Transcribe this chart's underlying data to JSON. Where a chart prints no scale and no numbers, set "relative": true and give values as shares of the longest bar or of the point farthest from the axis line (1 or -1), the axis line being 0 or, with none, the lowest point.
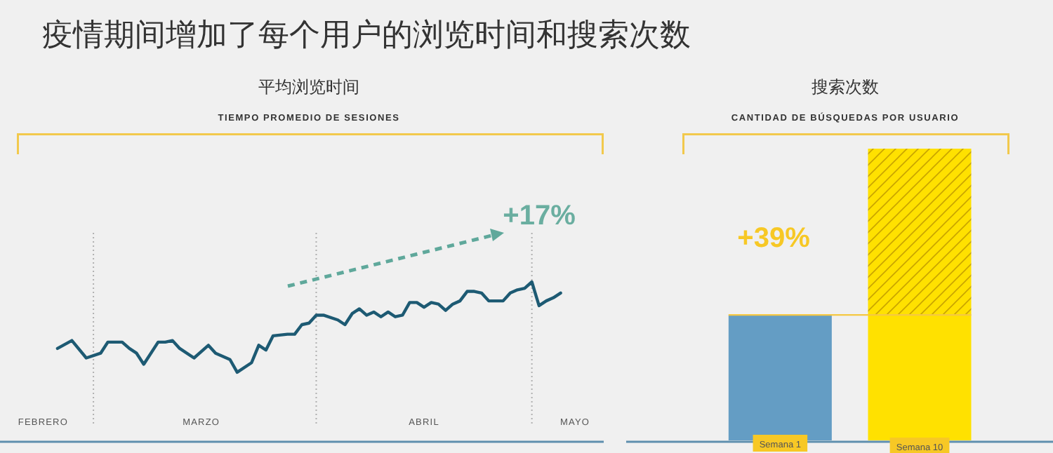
{
  "chart_data": [
    {
      "type": "line",
      "title": "平均浏览时间",
      "subtitle": "TIEMPO PROMEDIO DE SESIONES",
      "annotations": [
        "疫情期间增加了每个用户的浏览时间和搜索次数",
        "+17%"
      ],
      "relative": true,
      "line_style": "solid",
      "marker": "none",
      "x": [
        "--02-25",
        "--02-27",
        "--02-29",
        "--03-02",
        "--03-03",
        "--03-05",
        "--03-06",
        "--03-07",
        "--03-08",
        "--03-10",
        "--03-11",
        "--03-12",
        "--03-13",
        "--03-15",
        "--03-17",
        "--03-18",
        "--03-20",
        "--03-21",
        "--03-23",
        "--03-24",
        "--03-25",
        "--03-26",
        "--03-28",
        "--03-29",
        "--03-30",
        "--03-31",
        "--04-01",
        "--04-02",
        "--04-04",
        "--04-05",
        "--04-06",
        "--04-07",
        "--04-08",
        "--04-09",
        "--04-10",
        "--04-11",
        "--04-12",
        "--04-13",
        "--04-14",
        "--04-15",
        "--04-16",
        "--04-17",
        "--04-18",
        "--04-19",
        "--04-20",
        "--04-21",
        "--04-22",
        "--04-23",
        "--04-24",
        "--04-25",
        "--04-27",
        "--04-28",
        "--04-29",
        "--04-30",
        "--05-01",
        "--05-02",
        "--05-03",
        "--05-04",
        "--05-05"
      ],
      "series": [
        {
          "color": "#1d5a73",
          "values": [
            0.58,
            0.63,
            0.52,
            0.55,
            0.62,
            0.62,
            0.58,
            0.55,
            0.48,
            0.62,
            0.62,
            0.63,
            0.58,
            0.52,
            0.6,
            0.55,
            0.51,
            0.43,
            0.49,
            0.6,
            0.57,
            0.66,
            0.67,
            0.67,
            0.73,
            0.74,
            0.79,
            0.79,
            0.76,
            0.73,
            0.8,
            0.83,
            0.79,
            0.81,
            0.78,
            0.81,
            0.78,
            0.79,
            0.87,
            0.87,
            0.84,
            0.87,
            0.86,
            0.82,
            0.86,
            0.88,
            0.94,
            0.94,
            0.93,
            0.88,
            0.88,
            0.93,
            0.95,
            0.96,
            1,
            0.85,
            0.88,
            0.9,
            0.93
          ]
        }
      ],
      "xlim": [
        "--02-17",
        "--05-11"
      ],
      "xticks": [
        {
          "value": "--02-23",
          "label": "FEBRERO"
        },
        {
          "value": "--03-16",
          "label": "MARZO"
        },
        {
          "value": "--04-16",
          "label": "ABRIL"
        },
        {
          "value": "--05-07",
          "label": "MAYO"
        }
      ],
      "ref_lines": [
        {
          "axis": "x",
          "value": "--03-01",
          "color": "#b0b0b0",
          "line_style": "dotted"
        },
        {
          "axis": "x",
          "value": "--04-01",
          "color": "#b0b0b0",
          "line_style": "dotted"
        },
        {
          "axis": "x",
          "value": "--05-01",
          "color": "#b0b0b0",
          "line_style": "dotted"
        }
      ]
    },
    {
      "type": "bar",
      "title": "搜索次数",
      "subtitle": "CANTIDAD DE BÚSQUEDAS POR USUARIO",
      "annotations": [
        "+39%"
      ],
      "relative": true,
      "stacked": true,
      "categories": [
        "Semana 1",
        "Semana 10"
      ],
      "series": [
        {
          "colors": [
            "#649dc4",
            "#ffe100"
          ],
          "values": [
            0.43,
            0.43
          ]
        },
        {
          "color": "#ffe100",
          "values": [
            null,
            0.57
          ]
        }
      ],
      "ref_lines": [
        {
          "axis": "y",
          "value": 0.43,
          "color": "#f5c842",
          "line_style": "solid"
        }
      ]
    }
  ]
}
